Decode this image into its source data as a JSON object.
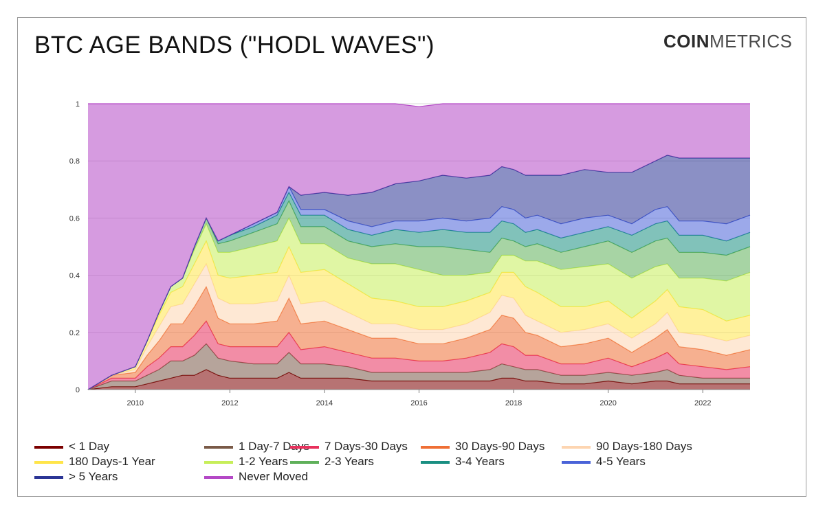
{
  "header": {
    "title": "BTC AGE BANDS (\"HODL WAVES\")",
    "brand_bold": "COIN",
    "brand_light": "METRICS"
  },
  "chart_data": {
    "type": "area",
    "stacking": "cumulative",
    "xlabel": "",
    "ylabel": "",
    "xlim": [
      2009.0,
      2023.0
    ],
    "ylim": [
      0,
      1
    ],
    "x_ticks": [
      "2010",
      "2012",
      "2014",
      "2016",
      "2018",
      "2020",
      "2022"
    ],
    "y_ticks": [
      "0",
      "0.2",
      "0.4",
      "0.6",
      "0.8",
      "1"
    ],
    "grid": "horizontal",
    "legend_position": "bottom",
    "x": [
      2009.0,
      2009.5,
      2010.0,
      2010.25,
      2010.5,
      2010.75,
      2011.0,
      2011.25,
      2011.5,
      2011.75,
      2012.0,
      2012.5,
      2013.0,
      2013.25,
      2013.5,
      2014.0,
      2014.5,
      2015.0,
      2015.5,
      2016.0,
      2016.5,
      2017.0,
      2017.5,
      2017.75,
      2018.0,
      2018.25,
      2018.5,
      2019.0,
      2019.5,
      2020.0,
      2020.5,
      2021.0,
      2021.25,
      2021.5,
      2022.0,
      2022.5,
      2023.0
    ],
    "series": [
      {
        "name": "< 1 Day",
        "color": "#7b0000",
        "values": [
          0.0,
          0.01,
          0.01,
          0.02,
          0.03,
          0.04,
          0.05,
          0.05,
          0.07,
          0.05,
          0.04,
          0.04,
          0.04,
          0.06,
          0.04,
          0.04,
          0.04,
          0.03,
          0.03,
          0.03,
          0.03,
          0.03,
          0.03,
          0.04,
          0.04,
          0.03,
          0.03,
          0.02,
          0.02,
          0.03,
          0.02,
          0.03,
          0.03,
          0.02,
          0.02,
          0.02,
          0.02
        ]
      },
      {
        "name": "1 Day-7 Days",
        "color": "#7a5a48",
        "values": [
          0.0,
          0.02,
          0.02,
          0.03,
          0.04,
          0.06,
          0.05,
          0.07,
          0.09,
          0.06,
          0.06,
          0.05,
          0.05,
          0.07,
          0.05,
          0.05,
          0.04,
          0.03,
          0.03,
          0.03,
          0.03,
          0.03,
          0.04,
          0.05,
          0.04,
          0.04,
          0.04,
          0.03,
          0.03,
          0.03,
          0.03,
          0.03,
          0.04,
          0.03,
          0.02,
          0.02,
          0.02
        ]
      },
      {
        "name": "7 Days-30 Days",
        "color": "#e8305c",
        "values": [
          0.0,
          0.01,
          0.01,
          0.03,
          0.04,
          0.05,
          0.05,
          0.07,
          0.08,
          0.05,
          0.05,
          0.06,
          0.06,
          0.07,
          0.05,
          0.06,
          0.05,
          0.05,
          0.05,
          0.04,
          0.04,
          0.05,
          0.06,
          0.07,
          0.07,
          0.05,
          0.05,
          0.04,
          0.04,
          0.05,
          0.03,
          0.05,
          0.06,
          0.04,
          0.04,
          0.03,
          0.04
        ]
      },
      {
        "name": "30 Days-90 Days",
        "color": "#ef6f35",
        "values": [
          0.0,
          0.01,
          0.02,
          0.04,
          0.06,
          0.08,
          0.08,
          0.1,
          0.12,
          0.09,
          0.08,
          0.08,
          0.09,
          0.12,
          0.09,
          0.09,
          0.08,
          0.07,
          0.07,
          0.06,
          0.06,
          0.07,
          0.08,
          0.1,
          0.1,
          0.08,
          0.07,
          0.06,
          0.07,
          0.07,
          0.05,
          0.07,
          0.08,
          0.06,
          0.06,
          0.05,
          0.06
        ]
      },
      {
        "name": "90 Days-180 Days",
        "color": "#fdd5b1",
        "values": [
          0.0,
          0.0,
          0.01,
          0.03,
          0.05,
          0.06,
          0.07,
          0.08,
          0.08,
          0.07,
          0.07,
          0.07,
          0.07,
          0.08,
          0.07,
          0.07,
          0.06,
          0.05,
          0.05,
          0.05,
          0.05,
          0.05,
          0.06,
          0.07,
          0.07,
          0.06,
          0.05,
          0.05,
          0.05,
          0.05,
          0.05,
          0.05,
          0.06,
          0.05,
          0.05,
          0.05,
          0.05
        ]
      },
      {
        "name": "180 Days-1 Year",
        "color": "#ffe54a",
        "values": [
          0.0,
          0.0,
          0.01,
          0.02,
          0.04,
          0.05,
          0.06,
          0.07,
          0.08,
          0.08,
          0.09,
          0.1,
          0.1,
          0.1,
          0.11,
          0.11,
          0.1,
          0.09,
          0.08,
          0.08,
          0.08,
          0.08,
          0.07,
          0.08,
          0.09,
          0.1,
          0.1,
          0.09,
          0.08,
          0.08,
          0.07,
          0.08,
          0.08,
          0.09,
          0.09,
          0.07,
          0.07
        ]
      },
      {
        "name": "1-2 Years",
        "color": "#c7ee5a",
        "values": [
          0.0,
          0.0,
          0.0,
          0.0,
          0.01,
          0.02,
          0.03,
          0.05,
          0.06,
          0.08,
          0.09,
          0.1,
          0.11,
          0.1,
          0.1,
          0.09,
          0.09,
          0.12,
          0.13,
          0.13,
          0.11,
          0.09,
          0.07,
          0.06,
          0.06,
          0.09,
          0.11,
          0.13,
          0.14,
          0.13,
          0.14,
          0.12,
          0.09,
          0.1,
          0.11,
          0.14,
          0.15
        ]
      },
      {
        "name": "2-3 Years",
        "color": "#5fb05a",
        "values": [
          0.0,
          0.0,
          0.0,
          0.0,
          0.0,
          0.0,
          0.0,
          0.01,
          0.02,
          0.03,
          0.04,
          0.05,
          0.06,
          0.06,
          0.06,
          0.06,
          0.06,
          0.06,
          0.07,
          0.08,
          0.1,
          0.09,
          0.07,
          0.06,
          0.05,
          0.05,
          0.06,
          0.06,
          0.07,
          0.08,
          0.09,
          0.09,
          0.09,
          0.09,
          0.09,
          0.09,
          0.09
        ]
      },
      {
        "name": "3-4 Years",
        "color": "#1a8f82",
        "values": [
          0.0,
          0.0,
          0.0,
          0.0,
          0.0,
          0.0,
          0.0,
          0.0,
          0.0,
          0.01,
          0.02,
          0.02,
          0.03,
          0.03,
          0.04,
          0.04,
          0.04,
          0.04,
          0.05,
          0.05,
          0.06,
          0.06,
          0.07,
          0.06,
          0.06,
          0.05,
          0.05,
          0.05,
          0.05,
          0.05,
          0.06,
          0.06,
          0.06,
          0.06,
          0.06,
          0.05,
          0.05
        ]
      },
      {
        "name": "4-5 Years",
        "color": "#4a63d8",
        "values": [
          0.0,
          0.0,
          0.0,
          0.0,
          0.0,
          0.0,
          0.0,
          0.0,
          0.0,
          0.0,
          0.0,
          0.01,
          0.01,
          0.02,
          0.02,
          0.02,
          0.03,
          0.03,
          0.03,
          0.04,
          0.04,
          0.04,
          0.05,
          0.05,
          0.05,
          0.05,
          0.05,
          0.05,
          0.05,
          0.04,
          0.04,
          0.05,
          0.05,
          0.05,
          0.05,
          0.06,
          0.06
        ]
      },
      {
        "name": "> 5 Years",
        "color": "#2b3595",
        "values": [
          0.0,
          0.0,
          0.0,
          0.0,
          0.0,
          0.0,
          0.0,
          0.0,
          0.0,
          0.0,
          0.0,
          0.0,
          0.0,
          0.0,
          0.05,
          0.06,
          0.09,
          0.12,
          0.13,
          0.14,
          0.15,
          0.15,
          0.15,
          0.14,
          0.14,
          0.15,
          0.14,
          0.17,
          0.17,
          0.15,
          0.18,
          0.17,
          0.18,
          0.22,
          0.22,
          0.23,
          0.2
        ]
      },
      {
        "name": "Never Moved",
        "color": "#b448c6",
        "values": [
          1.0,
          0.95,
          0.92,
          0.83,
          0.73,
          0.64,
          0.61,
          0.5,
          0.4,
          0.48,
          0.46,
          0.42,
          0.38,
          0.29,
          0.32,
          0.31,
          0.32,
          0.31,
          0.28,
          0.26,
          0.25,
          0.26,
          0.25,
          0.22,
          0.23,
          0.25,
          0.25,
          0.25,
          0.23,
          0.24,
          0.24,
          0.2,
          0.18,
          0.19,
          0.19,
          0.19,
          0.19
        ]
      }
    ]
  }
}
